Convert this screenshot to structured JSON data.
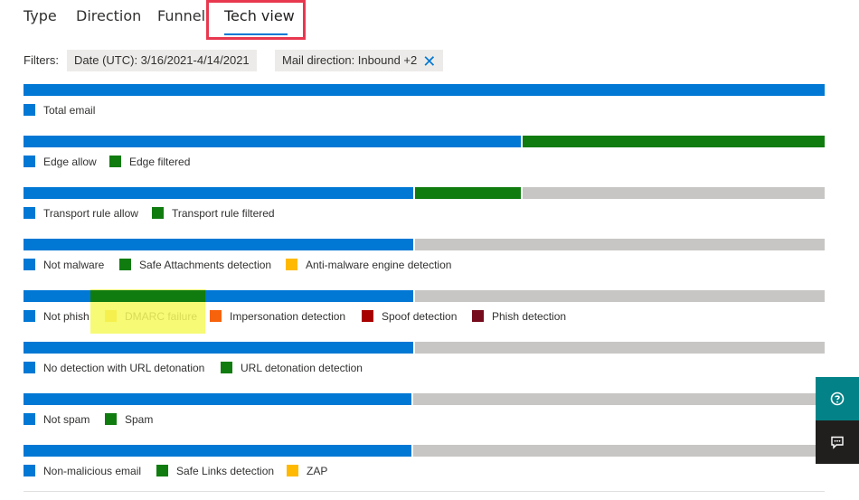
{
  "tabs": [
    {
      "label": "Type",
      "active": false
    },
    {
      "label": "Direction",
      "active": false
    },
    {
      "label": "Funnel",
      "active": false
    },
    {
      "label": "Tech view",
      "active": true
    }
  ],
  "filters": {
    "label": "Filters:",
    "chips": [
      {
        "label": "Date (UTC): 3/16/2021-4/14/2021",
        "removable": false
      },
      {
        "label": "Mail direction: Inbound +2",
        "removable": true
      }
    ]
  },
  "colors": {
    "blue": "#0078d4",
    "green": "#107c10",
    "gray": "#c8c6c4",
    "yellow": "#ffb900",
    "orange": "#f7630c",
    "red": "#a80000",
    "darkred": "#750b1c",
    "highlight": "#f4f95c"
  },
  "rows": [
    {
      "segments": [
        {
          "color": "blue",
          "fraction": 1.0
        }
      ],
      "legend": [
        {
          "label": "Total email",
          "color": "blue"
        }
      ]
    },
    {
      "segments": [
        {
          "color": "blue",
          "fraction": 0.623
        },
        {
          "color": "green",
          "fraction": 0.377
        }
      ],
      "legend": [
        {
          "label": "Edge allow",
          "color": "blue"
        },
        {
          "label": "Edge filtered",
          "color": "green"
        }
      ]
    },
    {
      "segments": [
        {
          "color": "blue",
          "fraction": 0.489
        },
        {
          "color": "green",
          "fraction": 0.134
        },
        {
          "color": "gray",
          "fraction": 0.377
        }
      ],
      "legend": [
        {
          "label": "Transport rule allow",
          "color": "blue"
        },
        {
          "label": "Transport rule filtered",
          "color": "green"
        }
      ]
    },
    {
      "segments": [
        {
          "color": "blue",
          "fraction": 0.489
        },
        {
          "color": "gray",
          "fraction": 0.511
        }
      ],
      "legend": [
        {
          "label": "Not malware",
          "color": "blue"
        },
        {
          "label": "Safe Attachments detection",
          "color": "green"
        },
        {
          "label": "Anti-malware engine detection",
          "color": "yellow"
        }
      ]
    },
    {
      "segments": [
        {
          "color": "blue",
          "fraction": 0.489
        },
        {
          "color": "gray",
          "fraction": 0.511
        }
      ],
      "legend": [
        {
          "label": "Not phish",
          "color": "blue"
        },
        {
          "label": "DMARC failure",
          "color": "yellow"
        },
        {
          "label": "Impersonation detection",
          "color": "orange"
        },
        {
          "label": "Spoof detection",
          "color": "red"
        },
        {
          "label": "Phish detection",
          "color": "darkred"
        }
      ]
    },
    {
      "segments": [
        {
          "color": "blue",
          "fraction": 0.489
        },
        {
          "color": "gray",
          "fraction": 0.511
        }
      ],
      "legend": [
        {
          "label": "No detection with URL detonation",
          "color": "blue"
        },
        {
          "label": "URL detonation detection",
          "color": "green"
        }
      ]
    },
    {
      "segments": [
        {
          "color": "blue",
          "fraction": 0.487
        },
        {
          "color": "gray",
          "fraction": 0.513
        }
      ],
      "legend": [
        {
          "label": "Not spam",
          "color": "blue"
        },
        {
          "label": "Spam",
          "color": "green"
        }
      ]
    },
    {
      "segments": [
        {
          "color": "blue",
          "fraction": 0.487
        },
        {
          "color": "gray",
          "fraction": 0.513
        }
      ],
      "legend": [
        {
          "label": "Non-malicious email",
          "color": "blue"
        },
        {
          "label": "Safe Links detection",
          "color": "green"
        },
        {
          "label": "ZAP",
          "color": "yellow"
        }
      ]
    }
  ],
  "side_buttons": [
    {
      "icon": "help-icon",
      "color": "#038387"
    },
    {
      "icon": "feedback-icon",
      "color": "#201f1e"
    }
  ]
}
